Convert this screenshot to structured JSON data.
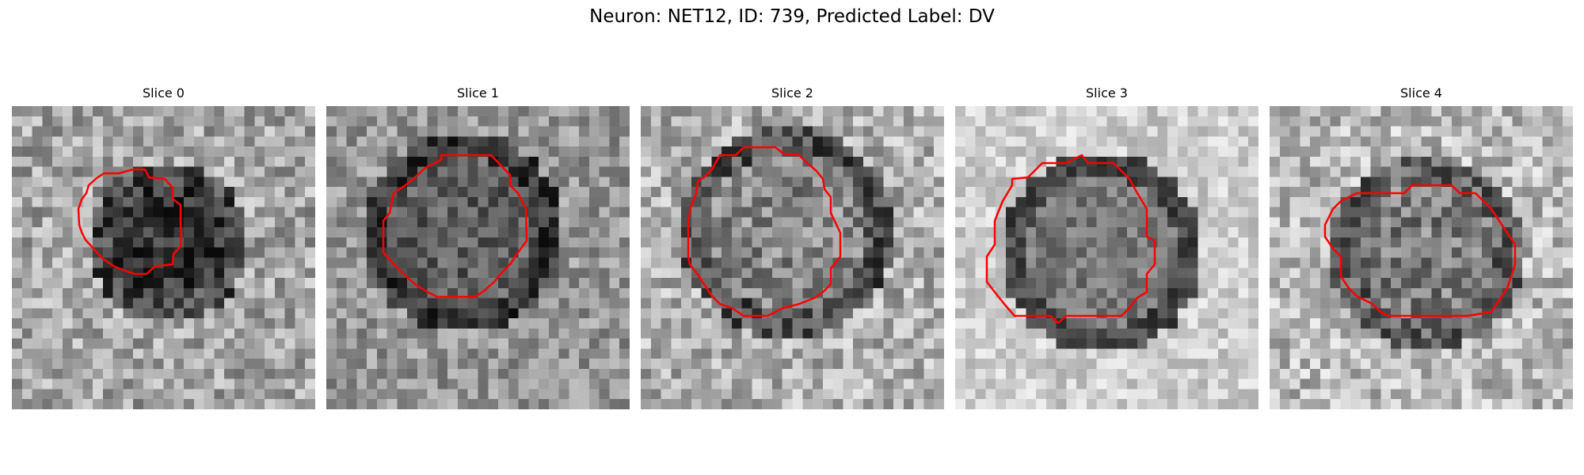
{
  "figure": {
    "title": "Neuron: NET12, ID: 739, Predicted Label: DV"
  },
  "slices": [
    {
      "title": "Slice 0",
      "image": "grayscale microscopy patch",
      "contour_color": "#ff0000"
    },
    {
      "title": "Slice 1",
      "image": "grayscale microscopy patch",
      "contour_color": "#ff0000"
    },
    {
      "title": "Slice 2",
      "image": "grayscale microscopy patch",
      "contour_color": "#ff0000"
    },
    {
      "title": "Slice 3",
      "image": "grayscale microscopy patch",
      "contour_color": "#ff0000"
    },
    {
      "title": "Slice 4",
      "image": "grayscale microscopy patch",
      "contour_color": "#ff0000"
    }
  ]
}
